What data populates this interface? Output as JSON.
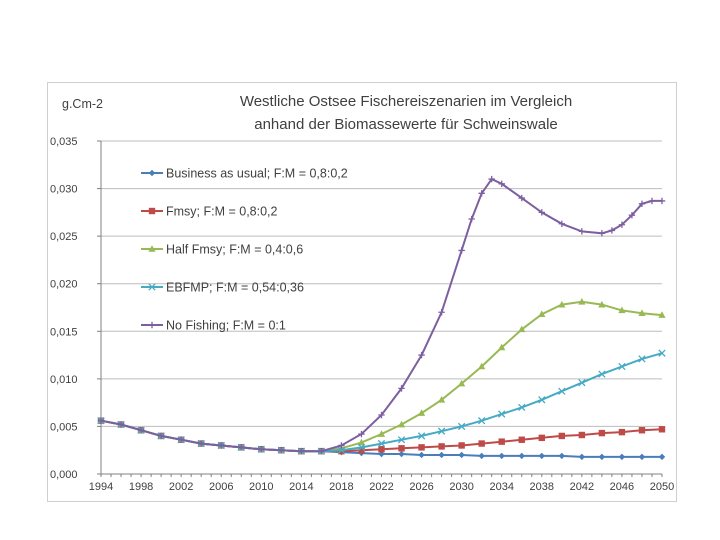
{
  "chart_data": {
    "type": "line",
    "title": [
      "Westliche Ostsee Fischereiszenarien im Vergleich",
      "anhand der Biomassewerte für Schweinswale"
    ],
    "ylabel": "g.Cm-2",
    "xlabel": "",
    "ylim": [
      0,
      0.035
    ],
    "xlim": [
      1994,
      2050
    ],
    "y_ticks": [
      "0,000",
      "0,005",
      "0,010",
      "0,015",
      "0,020",
      "0,025",
      "0,030",
      "0,035"
    ],
    "x_ticks": [
      "1994",
      "1998",
      "2002",
      "2006",
      "2010",
      "2014",
      "2018",
      "2022",
      "2026",
      "2030",
      "2034",
      "2038",
      "2042",
      "2046",
      "2050"
    ],
    "grid": "horizontal",
    "legend_position": "top-left",
    "series": [
      {
        "name": "Business as usual; F:M = 0,8:0,2",
        "color": "#4a7ebb",
        "marker": "diamond",
        "points": [
          [
            1994,
            0.0056
          ],
          [
            1996,
            0.0052
          ],
          [
            1998,
            0.0046
          ],
          [
            2000,
            0.004
          ],
          [
            2002,
            0.0036
          ],
          [
            2004,
            0.0032
          ],
          [
            2006,
            0.003
          ],
          [
            2008,
            0.0028
          ],
          [
            2010,
            0.0026
          ],
          [
            2012,
            0.0025
          ],
          [
            2014,
            0.0024
          ],
          [
            2016,
            0.0024
          ],
          [
            2018,
            0.0023
          ],
          [
            2020,
            0.0022
          ],
          [
            2022,
            0.0021
          ],
          [
            2024,
            0.0021
          ],
          [
            2026,
            0.002
          ],
          [
            2028,
            0.002
          ],
          [
            2030,
            0.002
          ],
          [
            2032,
            0.0019
          ],
          [
            2034,
            0.0019
          ],
          [
            2036,
            0.0019
          ],
          [
            2038,
            0.0019
          ],
          [
            2040,
            0.0019
          ],
          [
            2042,
            0.0018
          ],
          [
            2044,
            0.0018
          ],
          [
            2046,
            0.0018
          ],
          [
            2048,
            0.0018
          ],
          [
            2050,
            0.0018
          ]
        ]
      },
      {
        "name": "Fmsy; F:M = 0,8:0,2",
        "color": "#be4b48",
        "marker": "square",
        "points": [
          [
            1994,
            0.0056
          ],
          [
            1996,
            0.0052
          ],
          [
            1998,
            0.0046
          ],
          [
            2000,
            0.004
          ],
          [
            2002,
            0.0036
          ],
          [
            2004,
            0.0032
          ],
          [
            2006,
            0.003
          ],
          [
            2008,
            0.0028
          ],
          [
            2010,
            0.0026
          ],
          [
            2012,
            0.0025
          ],
          [
            2014,
            0.0024
          ],
          [
            2016,
            0.0024
          ],
          [
            2018,
            0.0024
          ],
          [
            2020,
            0.0025
          ],
          [
            2022,
            0.0026
          ],
          [
            2024,
            0.0027
          ],
          [
            2026,
            0.0028
          ],
          [
            2028,
            0.0029
          ],
          [
            2030,
            0.003
          ],
          [
            2032,
            0.0032
          ],
          [
            2034,
            0.0034
          ],
          [
            2036,
            0.0036
          ],
          [
            2038,
            0.0038
          ],
          [
            2040,
            0.004
          ],
          [
            2042,
            0.0041
          ],
          [
            2044,
            0.0043
          ],
          [
            2046,
            0.0044
          ],
          [
            2048,
            0.0046
          ],
          [
            2050,
            0.0047
          ]
        ]
      },
      {
        "name": "Half Fmsy; F:M = 0,4:0,6",
        "color": "#98b954",
        "marker": "triangle",
        "points": [
          [
            1994,
            0.0056
          ],
          [
            1996,
            0.0052
          ],
          [
            1998,
            0.0046
          ],
          [
            2000,
            0.004
          ],
          [
            2002,
            0.0036
          ],
          [
            2004,
            0.0032
          ],
          [
            2006,
            0.003
          ],
          [
            2008,
            0.0028
          ],
          [
            2010,
            0.0026
          ],
          [
            2012,
            0.0025
          ],
          [
            2014,
            0.0024
          ],
          [
            2016,
            0.0024
          ],
          [
            2018,
            0.0027
          ],
          [
            2020,
            0.0033
          ],
          [
            2022,
            0.0042
          ],
          [
            2024,
            0.0052
          ],
          [
            2026,
            0.0064
          ],
          [
            2028,
            0.0078
          ],
          [
            2030,
            0.0095
          ],
          [
            2032,
            0.0113
          ],
          [
            2034,
            0.0133
          ],
          [
            2036,
            0.0152
          ],
          [
            2038,
            0.0168
          ],
          [
            2040,
            0.0178
          ],
          [
            2042,
            0.0181
          ],
          [
            2044,
            0.0178
          ],
          [
            2046,
            0.0172
          ],
          [
            2048,
            0.0169
          ],
          [
            2050,
            0.0167
          ]
        ]
      },
      {
        "name": "EBFMP; F:M = 0,54:0,36",
        "color": "#46aac5",
        "marker": "x",
        "points": [
          [
            1994,
            0.0056
          ],
          [
            1996,
            0.0052
          ],
          [
            1998,
            0.0046
          ],
          [
            2000,
            0.004
          ],
          [
            2002,
            0.0036
          ],
          [
            2004,
            0.0032
          ],
          [
            2006,
            0.003
          ],
          [
            2008,
            0.0028
          ],
          [
            2010,
            0.0026
          ],
          [
            2012,
            0.0025
          ],
          [
            2014,
            0.0024
          ],
          [
            2016,
            0.0024
          ],
          [
            2018,
            0.0025
          ],
          [
            2020,
            0.0028
          ],
          [
            2022,
            0.0032
          ],
          [
            2024,
            0.0036
          ],
          [
            2026,
            0.004
          ],
          [
            2028,
            0.0045
          ],
          [
            2030,
            0.005
          ],
          [
            2032,
            0.0056
          ],
          [
            2034,
            0.0063
          ],
          [
            2036,
            0.007
          ],
          [
            2038,
            0.0078
          ],
          [
            2040,
            0.0087
          ],
          [
            2042,
            0.0096
          ],
          [
            2044,
            0.0105
          ],
          [
            2046,
            0.0113
          ],
          [
            2048,
            0.0121
          ],
          [
            2050,
            0.0127
          ]
        ]
      },
      {
        "name": "No Fishing; F:M = 0:1",
        "color": "#7d5fa0",
        "marker": "cross",
        "points": [
          [
            1994,
            0.0056
          ],
          [
            1996,
            0.0052
          ],
          [
            1998,
            0.0046
          ],
          [
            2000,
            0.004
          ],
          [
            2002,
            0.0036
          ],
          [
            2004,
            0.0032
          ],
          [
            2006,
            0.003
          ],
          [
            2008,
            0.0028
          ],
          [
            2010,
            0.0026
          ],
          [
            2012,
            0.0025
          ],
          [
            2014,
            0.0024
          ],
          [
            2016,
            0.0024
          ],
          [
            2018,
            0.003
          ],
          [
            2020,
            0.0042
          ],
          [
            2022,
            0.0062
          ],
          [
            2024,
            0.009
          ],
          [
            2026,
            0.0125
          ],
          [
            2028,
            0.017
          ],
          [
            2030,
            0.0235
          ],
          [
            2031,
            0.0268
          ],
          [
            2032,
            0.0295
          ],
          [
            2033,
            0.031
          ],
          [
            2034,
            0.0305
          ],
          [
            2036,
            0.029
          ],
          [
            2038,
            0.0275
          ],
          [
            2040,
            0.0263
          ],
          [
            2042,
            0.0255
          ],
          [
            2044,
            0.0253
          ],
          [
            2045,
            0.0256
          ],
          [
            2046,
            0.0262
          ],
          [
            2047,
            0.0272
          ],
          [
            2048,
            0.0284
          ],
          [
            2049,
            0.0287
          ],
          [
            2050,
            0.0287
          ]
        ]
      }
    ]
  }
}
